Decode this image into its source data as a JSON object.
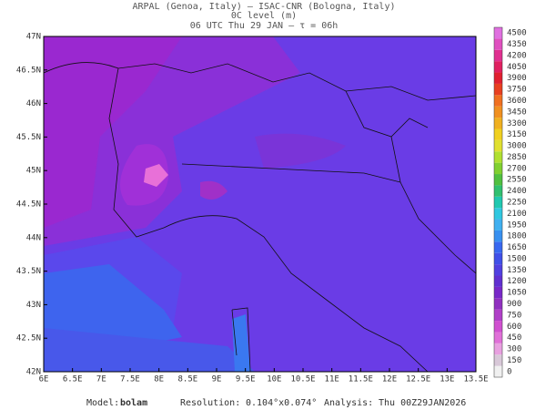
{
  "header": {
    "line1": "ARPAL (Genoa, Italy)  —  ISAC-CNR (Bologna, Italy)",
    "line2": "0C level (m)",
    "line3": "06 UTC Thu 29 JAN  —  τ = 06h"
  },
  "map": {
    "lat_labels": [
      "47N",
      "46.5N",
      "46N",
      "45.5N",
      "45N",
      "44.5N",
      "44N",
      "43.5N",
      "43N",
      "42.5N",
      "42N"
    ],
    "lon_labels": [
      "6E",
      "6.5E",
      "7E",
      "7.5E",
      "8E",
      "8.5E",
      "9E",
      "9.5E",
      "10E",
      "10.5E",
      "11E",
      "11.5E",
      "12E",
      "12.5E",
      "13E",
      "13.5E"
    ]
  },
  "colorbar": {
    "levels": [
      0,
      150,
      300,
      450,
      600,
      750,
      900,
      1050,
      1200,
      1350,
      1500,
      1650,
      1800,
      1950,
      2100,
      2250,
      2400,
      2550,
      2700,
      2850,
      3000,
      3150,
      3300,
      3450,
      3600,
      3750,
      3900,
      4050,
      4200,
      4350,
      4500
    ],
    "colors": [
      "#f0f0f0",
      "#d8c8d8",
      "#e8a0e0",
      "#e070d8",
      "#d050d0",
      "#b040c8",
      "#9030c0",
      "#7828c8",
      "#6030d0",
      "#5040e0",
      "#4050e8",
      "#3868f0",
      "#3890f0",
      "#40b0f0",
      "#30c8e0",
      "#20c8b0",
      "#30c070",
      "#50c040",
      "#80d030",
      "#b0e030",
      "#e0e030",
      "#f0d020",
      "#f0b020",
      "#f09020",
      "#f07020",
      "#e84020",
      "#e02030",
      "#e02060",
      "#e03090",
      "#e050c0",
      "#e070e0"
    ]
  },
  "footer": {
    "model_label": "Model:",
    "model": "bolam",
    "resolution_label": "Resolution:",
    "resolution": "0.104°x0.074°",
    "analysis_label": "Analysis:",
    "analysis": "Thu 00Z29JAN2026"
  }
}
